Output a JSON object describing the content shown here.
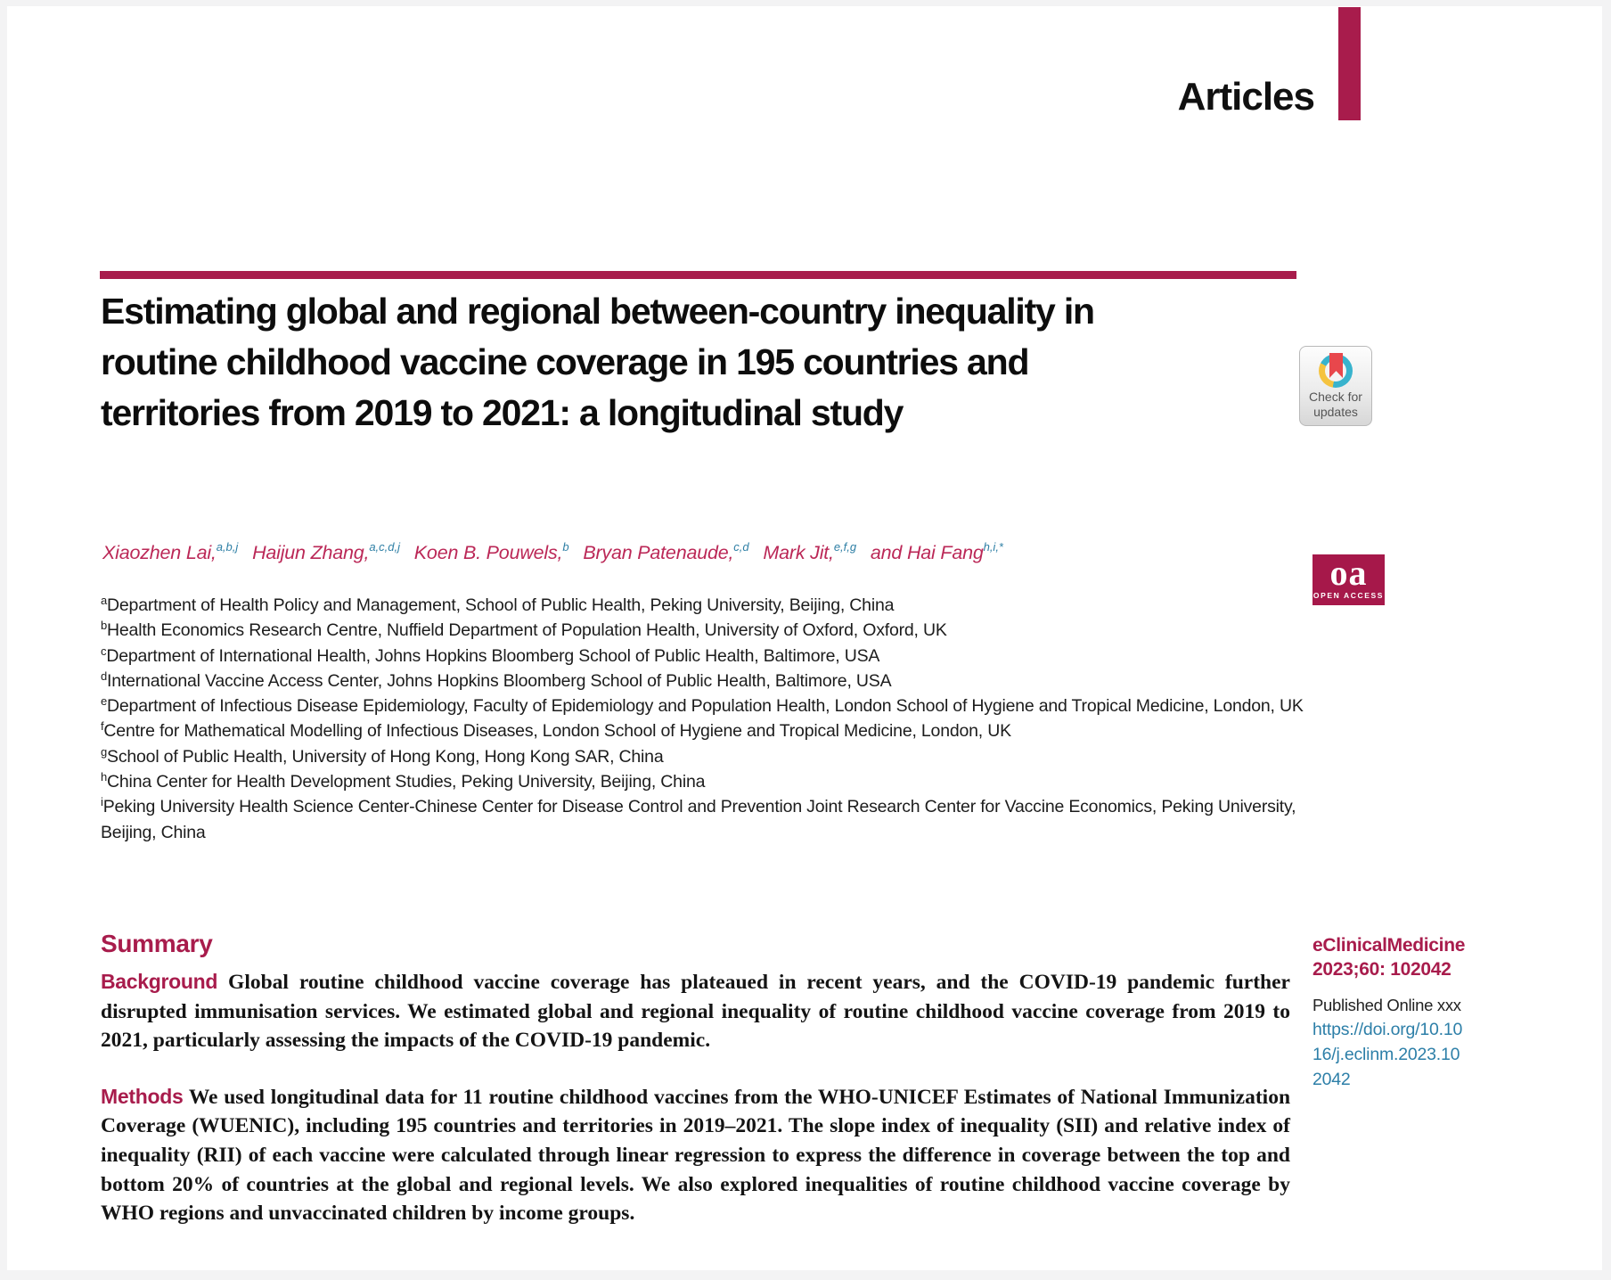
{
  "header": {
    "section_label": "Articles"
  },
  "article": {
    "title_lines": [
      "Estimating global and regional between-country inequality in",
      "routine childhood vaccine coverage in 195 countries and",
      "territories from 2019 to 2021: a longitudinal study"
    ],
    "authors": [
      {
        "name": "Xiaozhen Lai,",
        "sup": "a,b,j"
      },
      {
        "name": "Haijun Zhang,",
        "sup": "a,c,d,j"
      },
      {
        "name": "Koen B. Pouwels,",
        "sup": "b"
      },
      {
        "name": "Bryan Patenaude,",
        "sup": "c,d"
      },
      {
        "name": "Mark Jit,",
        "sup": "e,f,g"
      },
      {
        "name": "and Hai Fang",
        "sup": "h,i,*"
      }
    ],
    "affiliations": [
      {
        "sup": "a",
        "text": "Department of Health Policy and Management, School of Public Health, Peking University, Beijing, China"
      },
      {
        "sup": "b",
        "text": "Health Economics Research Centre, Nuffield Department of Population Health, University of Oxford, Oxford, UK"
      },
      {
        "sup": "c",
        "text": "Department of International Health, Johns Hopkins Bloomberg School of Public Health, Baltimore, USA"
      },
      {
        "sup": "d",
        "text": "International Vaccine Access Center, Johns Hopkins Bloomberg School of Public Health, Baltimore, USA"
      },
      {
        "sup": "e",
        "text": "Department of Infectious Disease Epidemiology, Faculty of Epidemiology and Population Health, London School of Hygiene and Tropical Medicine, London, UK"
      },
      {
        "sup": "f",
        "text": "Centre for Mathematical Modelling of Infectious Diseases, London School of Hygiene and Tropical Medicine, London, UK"
      },
      {
        "sup": "g",
        "text": "School of Public Health, University of Hong Kong, Hong Kong SAR, China"
      },
      {
        "sup": "h",
        "text": "China Center for Health Development Studies, Peking University, Beijing, China"
      },
      {
        "sup": "i",
        "text": "Peking University Health Science Center-Chinese Center for Disease Control and Prevention Joint Research Center for Vaccine Economics, Peking University, Beijing, China"
      }
    ]
  },
  "summary": {
    "heading": "Summary",
    "paragraphs": [
      {
        "label": "Background",
        "text": "Global routine childhood vaccine coverage has plateaued in recent years, and the COVID-19 pandemic further disrupted immunisation services. We estimated global and regional inequality of routine childhood vaccine coverage from 2019 to 2021, particularly assessing the impacts of the COVID-19 pandemic."
      },
      {
        "label": "Methods",
        "text": "We used longitudinal data for 11 routine childhood vaccines from the WHO-UNICEF Estimates of National Immunization Coverage (WUENIC), including 195 countries and territories in 2019–2021. The slope index of inequality (SII) and relative index of inequality (RII) of each vaccine were calculated through linear regression to express the difference in coverage between the top and bottom 20% of countries at the global and regional levels. We also explored inequalities of routine childhood vaccine coverage by WHO regions and unvaccinated children by income groups."
      }
    ]
  },
  "badges": {
    "check_for_updates": {
      "line1": "Check for",
      "line2": "updates"
    },
    "open_access": {
      "abbr": "oa",
      "label": "OPEN ACCESS"
    }
  },
  "sidebar": {
    "journal": "eClinicalMedicine",
    "citation": "2023;60: 102042",
    "published": "Published Online xxx",
    "doi": "https://doi.org/10.1016/j.eclinm.2023.102042"
  },
  "colors": {
    "crimson": "#a81c4c",
    "author_name": "#bb2857",
    "superscript_blue": "#2e7fa5",
    "link_blue": "#2d7fa8",
    "bookmark_red": "#e8474c",
    "ring_teal": "#38b3cd",
    "ring_yellow": "#f5c33f"
  }
}
